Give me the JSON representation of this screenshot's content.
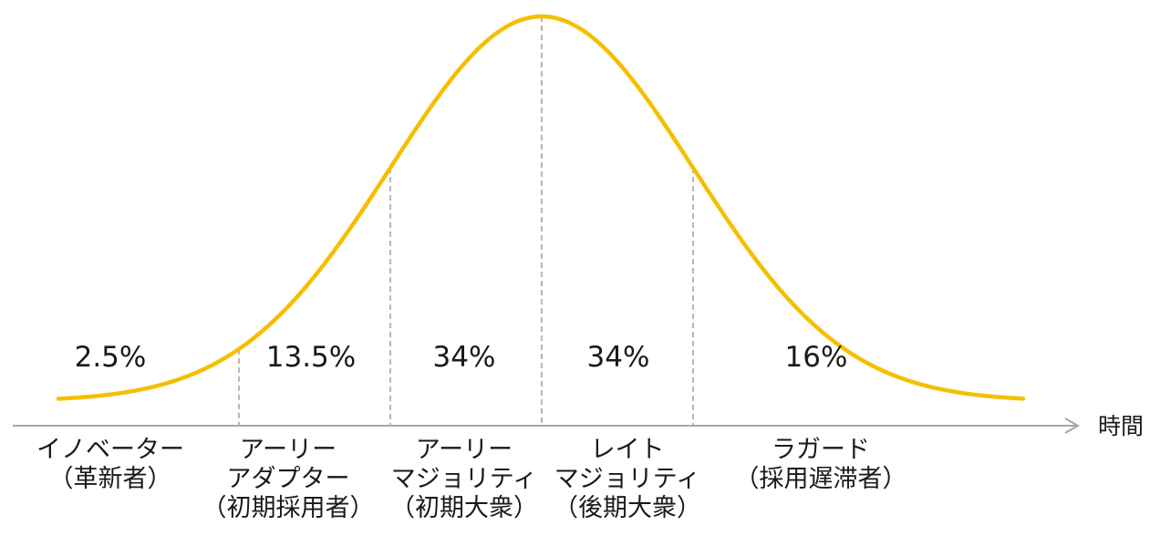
{
  "chart_data": {
    "type": "area",
    "description_kind": "normal-distribution-curve",
    "mean_label_divider": true,
    "axis": {
      "label": "時間"
    },
    "curve_color": "#f5bf00",
    "axis_color": "#a6a6a6",
    "divider_color": "#a6a6a6",
    "segments": [
      {
        "key": "innovators",
        "percent": "2.5%",
        "name_lines": [
          "イノベーター",
          "（革新者）"
        ]
      },
      {
        "key": "early-adopters",
        "percent": "13.5%",
        "name_lines": [
          "アーリー",
          "アダプター",
          "（初期採用者）"
        ]
      },
      {
        "key": "early-majority",
        "percent": "34%",
        "name_lines": [
          "アーリー",
          "マジョリティ",
          "（初期大衆）"
        ]
      },
      {
        "key": "late-majority",
        "percent": "34%",
        "name_lines": [
          "レイト",
          "マジョリティ",
          "（後期大衆）"
        ]
      },
      {
        "key": "laggards",
        "percent": "16%",
        "name_lines": [
          "ラガード",
          "（採用遅滞者）"
        ]
      }
    ]
  }
}
